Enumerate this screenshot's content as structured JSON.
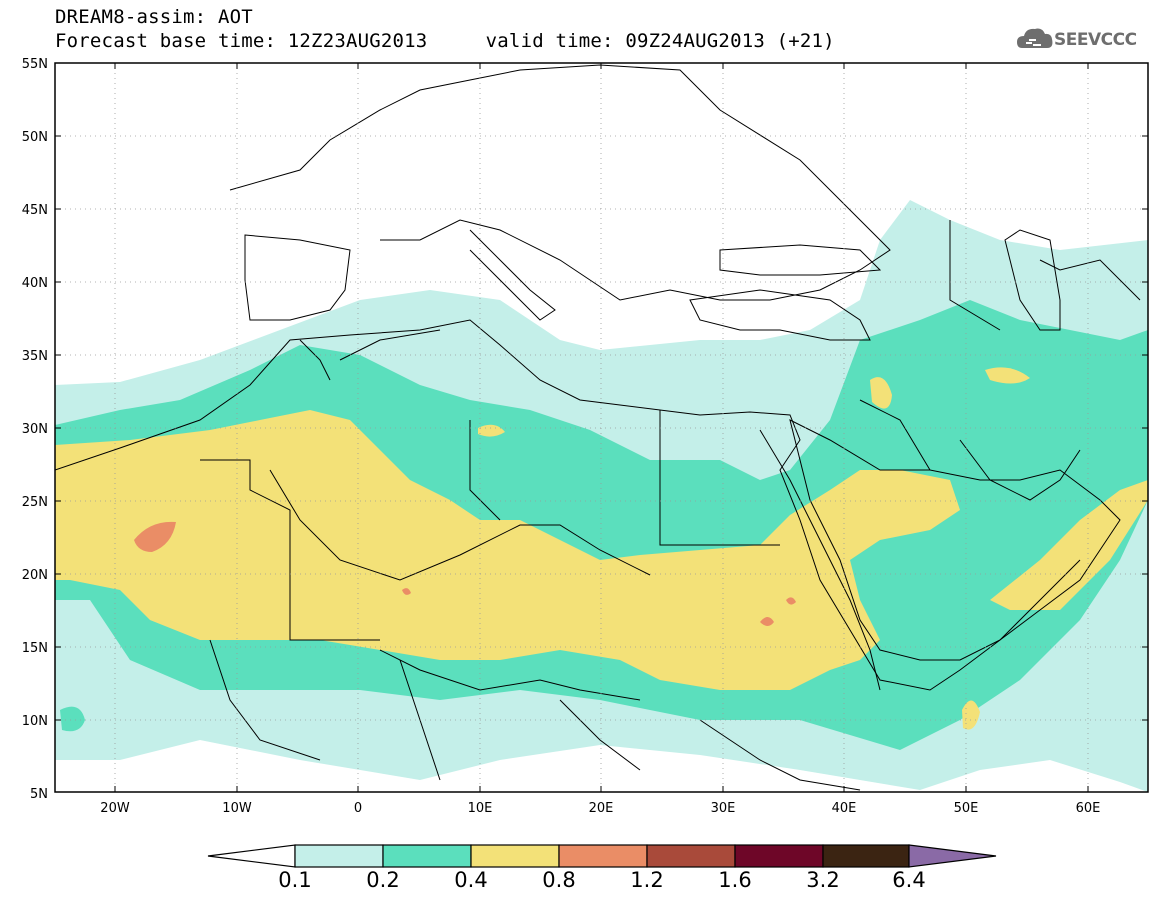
{
  "header": {
    "title": "DREAM8-assim: AOT",
    "base_time_label": "Forecast base time: 12Z23AUG2013",
    "valid_time_label": "valid time: 09Z24AUG2013 (+21)"
  },
  "logo": {
    "text": "SEEVCCC",
    "icon": "cloud-icon"
  },
  "map": {
    "lat_ticks": [
      "55N",
      "50N",
      "45N",
      "40N",
      "35N",
      "30N",
      "25N",
      "20N",
      "15N",
      "10N",
      "5N"
    ],
    "lon_ticks": [
      "20W",
      "10W",
      "0",
      "10E",
      "20E",
      "30E",
      "40E",
      "50E",
      "60E"
    ],
    "extent": {
      "lon": [
        -25,
        65
      ],
      "lat": [
        5,
        55
      ]
    }
  },
  "colorbar": {
    "labels": [
      "0.1",
      "0.2",
      "0.4",
      "0.8",
      "1.2",
      "1.6",
      "3.2",
      "6.4"
    ],
    "colors": [
      "#c4efe9",
      "#5bdfbd",
      "#f3e178",
      "#ea8d66",
      "#a94a3a",
      "#6e0628",
      "#3b2412",
      "#8a6aa6"
    ]
  }
}
